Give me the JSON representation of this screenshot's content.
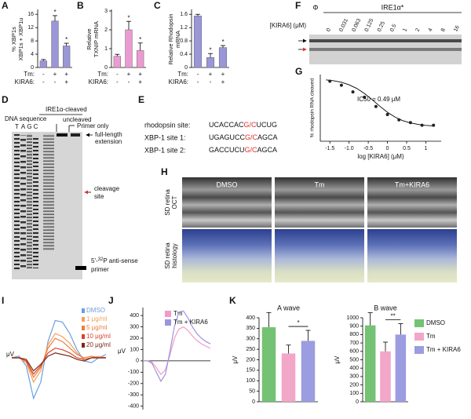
{
  "panel_labels": [
    "A",
    "B",
    "C",
    "D",
    "E",
    "F",
    "G",
    "H",
    "I",
    "J",
    "K"
  ],
  "gel_d": {
    "top_label": "IRE1α-cleaved",
    "sequence_label": "DNA sequence",
    "uncleaved_label": "uncleaved",
    "lanes": [
      "T",
      "A",
      "G",
      "C"
    ],
    "primer_only": "Primer only",
    "full_length": [
      "full-length",
      "extension"
    ],
    "cleavage": [
      "cleavage",
      "site"
    ],
    "primer": {
      "prefix": "5'-",
      "superscript": "32",
      "suffix": "P anti-sense",
      "line2": "primer"
    }
  },
  "sequences_e": {
    "rows": [
      {
        "name": "rhodopsin site:",
        "pre": "UCACCAC",
        "cut": "G/C",
        "post": "UCUG"
      },
      {
        "name": "XBP-1 site 1:",
        "pre": "UGAGUCC",
        "cut": "G/C",
        "post": "AGCA"
      },
      {
        "name": "XBP-1 site 2:",
        "pre": "GACCUCU",
        "cut": "G/C",
        "post": "AGCA"
      }
    ]
  },
  "gel_f": {
    "group_labels": [
      "Φ",
      "IRE1α*"
    ],
    "axis_label": "[KIRA6] (μM)",
    "concentrations": [
      0,
      0.031,
      0.063,
      0.125,
      0.25,
      0.5,
      1,
      2,
      4,
      8,
      16
    ]
  },
  "retina_h": {
    "columns": [
      "DMSO",
      "Tm",
      "Tm+KIRA6"
    ],
    "rows": [
      [
        "SD retina",
        "OCT"
      ],
      [
        "SD retina",
        "histology"
      ]
    ]
  },
  "chart_data": [
    {
      "type": "bar",
      "y_label": [
        "% XBP1s",
        "XBP1s + XBP1u"
      ],
      "values": [
        2,
        14,
        6.5
      ],
      "errors": [
        0.4,
        1.6,
        0.8
      ],
      "color": "#9b96d8",
      "ylim": [
        0,
        17
      ],
      "yticks": [
        0,
        4,
        8,
        12,
        16
      ],
      "significance": [
        null,
        "*",
        "*"
      ],
      "condition_rows": [
        {
          "name": "Tm:",
          "marks": [
            "-",
            "+",
            "+"
          ]
        },
        {
          "name": "KIRA6:",
          "marks": [
            "-",
            "-",
            "+"
          ]
        }
      ]
    },
    {
      "type": "bar",
      "y_label": [
        "Relative",
        "TXNIP mRNA"
      ],
      "values": [
        0.6,
        2.0,
        0.9
      ],
      "errors": [
        0.1,
        0.45,
        0.4
      ],
      "color": "#ec9bd2",
      "ylim": [
        0,
        3
      ],
      "yticks": [
        0,
        1,
        2,
        3
      ],
      "significance": [
        null,
        "*",
        "*"
      ],
      "condition_rows": [
        {
          "name": "Tm:",
          "marks": [
            "-",
            "+",
            "+"
          ]
        },
        {
          "name": "KIRA6:",
          "marks": [
            "-",
            "-",
            "+"
          ]
        }
      ]
    },
    {
      "type": "bar",
      "y_label": [
        "Relative Rhodopsin",
        "mRNA"
      ],
      "values": [
        1.55,
        0.3,
        0.6
      ],
      "errors": [
        0.05,
        0.12,
        0.06
      ],
      "color": "#9b96d8",
      "ylim": [
        0,
        1.7
      ],
      "yticks": [
        0,
        0.4,
        0.8,
        1.2,
        1.6
      ],
      "significance": [
        null,
        "*",
        "*"
      ],
      "condition_rows": [
        {
          "name": "Tm:",
          "marks": [
            "-",
            "+",
            "+"
          ]
        },
        {
          "name": "KIRA6:",
          "marks": [
            "-",
            "-",
            "+"
          ]
        }
      ]
    },
    {
      "type": "scatter",
      "y_label": "% rhodopsin RNA cleaved",
      "x_label": "log [KIRA6] (μM)",
      "annotation": "IC50 = 0.49 μM",
      "x": [
        -1.5,
        -1.2,
        -0.9,
        -0.6,
        -0.3,
        0,
        0.3,
        0.6,
        0.9,
        1.2
      ],
      "values": [
        45,
        42,
        37,
        33,
        26,
        20,
        16,
        14,
        12,
        12
      ],
      "color": "#222222",
      "fit": {
        "x": [
          -1.6,
          -1.4,
          -1.2,
          -1.0,
          -0.8,
          -0.6,
          -0.4,
          -0.2,
          0,
          0.2,
          0.4,
          0.6,
          0.8,
          1.0,
          1.2
        ],
        "values": [
          46.0,
          45.3,
          44.2,
          42.3,
          39.6,
          35.8,
          31.2,
          26.3,
          21.7,
          18.1,
          15.4,
          13.7,
          12.6,
          11.9,
          11.5
        ]
      },
      "xlim": [
        -1.75,
        1.4
      ],
      "ylim": [
        0,
        50
      ],
      "xticks": [
        -1.5,
        {
          "value": -1,
          "label": "-1.0"
        },
        -0.5,
        0,
        0.5,
        1
      ]
    },
    {
      "type": "line",
      "y_label": "μV",
      "ylim": [
        -300,
        300
      ],
      "series": [
        {
          "name": "DMSO",
          "color": "#6a9fe0",
          "values": [
            0,
            10,
            -50,
            -250,
            -150,
            100,
            230,
            220,
            150,
            50,
            -20,
            -30,
            0,
            20
          ]
        },
        {
          "name": "1 μg/ml",
          "color": "#f5a05a",
          "values": [
            0,
            0,
            -30,
            -150,
            -80,
            80,
            150,
            130,
            90,
            30,
            -10,
            0,
            10,
            0
          ]
        },
        {
          "name": "5 μg/ml",
          "color": "#ee7d35",
          "values": [
            0,
            0,
            -20,
            -120,
            -60,
            60,
            120,
            100,
            60,
            20,
            0,
            10,
            0,
            0
          ]
        },
        {
          "name": "10 μg/ml",
          "color": "#d9442a",
          "values": [
            0,
            0,
            -20,
            -100,
            -50,
            30,
            60,
            50,
            30,
            0,
            -10,
            0,
            0,
            0
          ]
        },
        {
          "name": "20 μg/ml",
          "color": "#7a2a18",
          "values": [
            0,
            0,
            -10,
            -80,
            -40,
            10,
            30,
            20,
            10,
            -10,
            -20,
            0,
            0,
            0
          ]
        }
      ]
    },
    {
      "type": "line",
      "y_label": "μV",
      "ylim": [
        -430,
        470
      ],
      "yticks": [
        -400,
        -300,
        -200,
        -100,
        0,
        100,
        200,
        300,
        400
      ],
      "series": [
        {
          "name": "Tm",
          "color": "#f29ac8",
          "values": [
            0,
            0,
            -10,
            -60,
            -120,
            -80,
            50,
            200,
            280,
            300,
            270,
            220,
            180,
            150,
            130,
            110
          ]
        },
        {
          "name": "Tm + KIRA6",
          "color": "#9b95e0",
          "values": [
            0,
            0,
            -20,
            -100,
            -180,
            -120,
            80,
            300,
            430,
            440,
            380,
            300,
            240,
            200,
            170,
            150
          ]
        }
      ]
    },
    {
      "type": "bar_panels",
      "y_label": "μV",
      "categories": [
        "DMSO",
        "Tm",
        "Tm + KIRA6"
      ],
      "colors": [
        "#74c274",
        "#f2a6c8",
        "#9c9ce0"
      ],
      "panels": [
        {
          "title": "A wave",
          "values": [
            355,
            230,
            290
          ],
          "errors": [
            70,
            40,
            50
          ],
          "ylim": [
            0,
            400
          ],
          "yticks": [
            0,
            50,
            100,
            150,
            200,
            250,
            300,
            350,
            400
          ],
          "significance": "*"
        },
        {
          "title": "B wave",
          "values": [
            910,
            600,
            800
          ],
          "errors": [
            150,
            110,
            130
          ],
          "ylim": [
            0,
            1000
          ],
          "yticks": [
            0,
            100,
            200,
            300,
            400,
            500,
            600,
            700,
            800,
            900,
            1000
          ],
          "significance": "**"
        }
      ]
    }
  ]
}
